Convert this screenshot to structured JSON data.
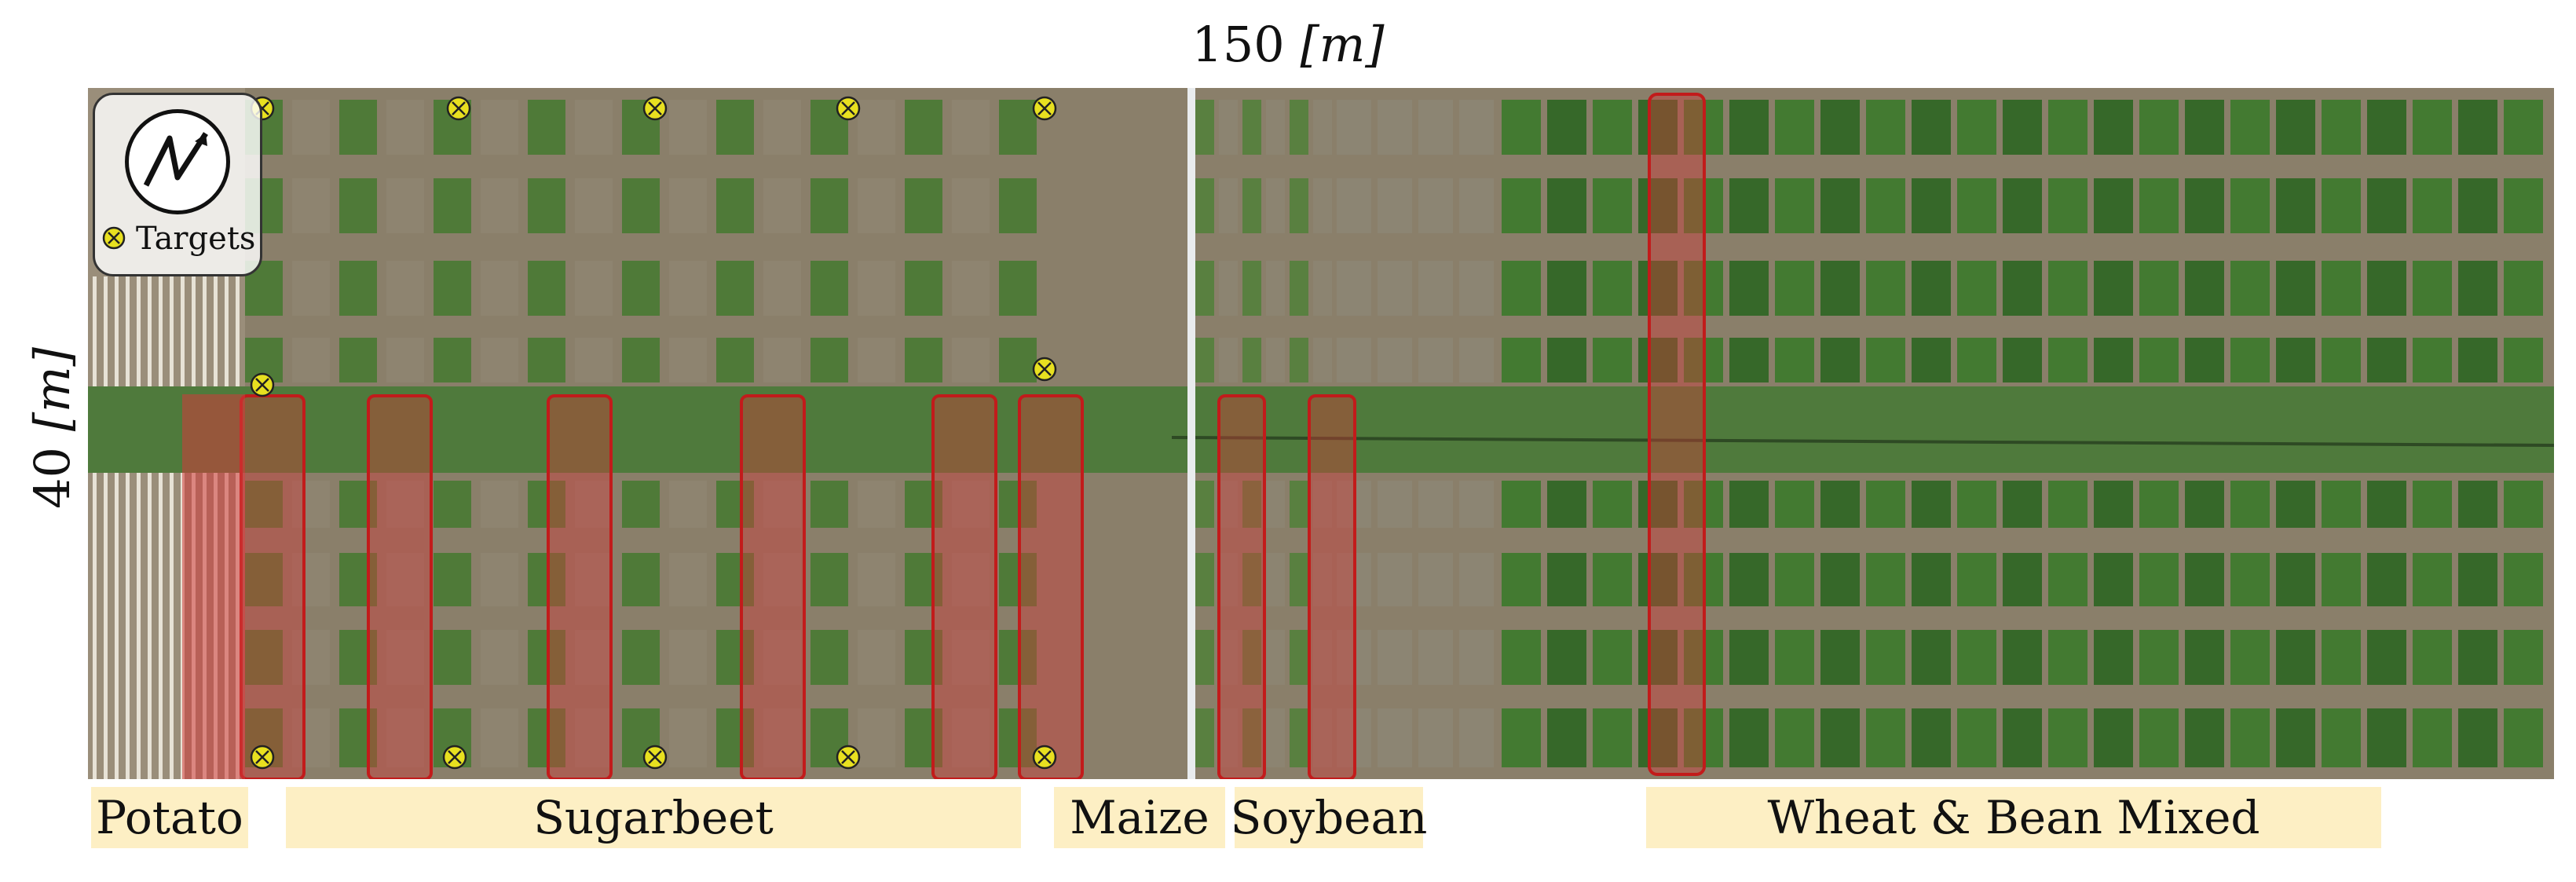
{
  "dimensions": {
    "width_value": "150",
    "width_unit": "[m]",
    "height_value": "40",
    "height_unit": "[m]"
  },
  "legend": {
    "targets_label": "Targets",
    "north_icon": "north-arrow-icon",
    "target_icon": "target-marker-icon"
  },
  "crops": [
    {
      "name": "Potato"
    },
    {
      "name": "Sugarbeet"
    },
    {
      "name": "Maize"
    },
    {
      "name": "Soybean"
    },
    {
      "name": "Wheat & Bean Mixed"
    }
  ],
  "colors": {
    "label_bg": "#fdefc4",
    "highlight_fill": "#d23a3a",
    "highlight_stroke": "#c21b1b",
    "target_fill": "#e8e020",
    "crop_green": "#3f7a2e",
    "soil": "#8a7f6a"
  }
}
